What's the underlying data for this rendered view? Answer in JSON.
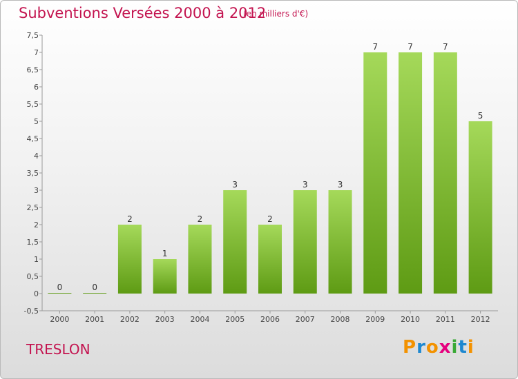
{
  "header": {
    "title": "Subventions Versées 2000 à 2012",
    "subtitle": "(en milliers d'€)"
  },
  "footer": {
    "place": "TRESLON",
    "logo": "Proxiti"
  },
  "colors": {
    "title": "#c3134f",
    "bar_light": "#a5d95a",
    "bar_dark": "#5e9b14",
    "logo_letters": [
      "#f39200",
      "#1e88d0",
      "#f39200",
      "#e5007e",
      "#39a935",
      "#1e88d0",
      "#f39200"
    ]
  },
  "chart_data": {
    "type": "bar",
    "categories": [
      "2000",
      "2001",
      "2002",
      "2003",
      "2004",
      "2005",
      "2006",
      "2007",
      "2008",
      "2009",
      "2010",
      "2011",
      "2012"
    ],
    "values": [
      0,
      0,
      2,
      1,
      2,
      3,
      2,
      3,
      3,
      7,
      7,
      7,
      5
    ],
    "ylim": [
      -0.5,
      7.5
    ],
    "yticks": [
      "-0,5",
      "0",
      "0,5",
      "1",
      "1,5",
      "2",
      "2,5",
      "3",
      "3,5",
      "4",
      "4,5",
      "5",
      "5,5",
      "6",
      "6,5",
      "7",
      "7,5"
    ],
    "grid": false
  }
}
